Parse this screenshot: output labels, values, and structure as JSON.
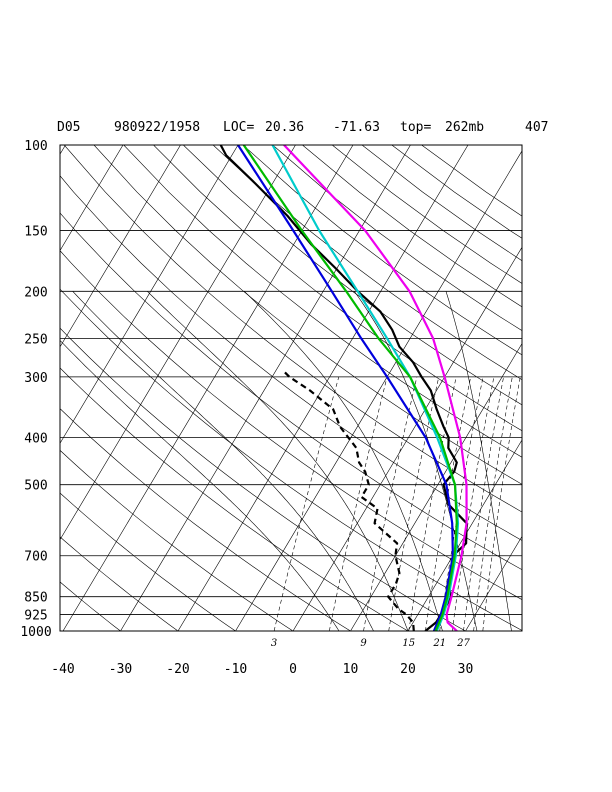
{
  "header": {
    "station": "D05",
    "datetime": "980922/1958",
    "loc_label": "LOC=",
    "lat": "20.36",
    "lon": "-71.63",
    "top_label": "top=",
    "top_value": "262mb",
    "number": "407"
  },
  "chart_data": {
    "type": "line",
    "subtype": "skew-T log-P sounding",
    "p_ticks": [
      "100",
      "150",
      "200",
      "250",
      "300",
      "400",
      "500",
      "700",
      "850",
      "925",
      "1000"
    ],
    "t_ticks": [
      "-40",
      "-30",
      "-20",
      "-10",
      "0",
      "10",
      "20",
      "30"
    ],
    "mixing_ratio_labels": [
      "3",
      "9",
      "15",
      "21",
      "27"
    ],
    "grid": true,
    "series": [
      {
        "color": "#000000",
        "style": "solid",
        "points": [
          [
            1000,
            23
          ],
          [
            960,
            24
          ],
          [
            925,
            24
          ],
          [
            900,
            24
          ],
          [
            850,
            24
          ],
          [
            800,
            22
          ],
          [
            760,
            21.5
          ],
          [
            700,
            20
          ],
          [
            660,
            21
          ],
          [
            600,
            19
          ],
          [
            550,
            14
          ],
          [
            500,
            11
          ],
          [
            470,
            11.5
          ],
          [
            450,
            11
          ],
          [
            420,
            8
          ],
          [
            400,
            7
          ],
          [
            380,
            5
          ],
          [
            350,
            2
          ],
          [
            320,
            -1
          ],
          [
            300,
            -4
          ],
          [
            280,
            -7
          ],
          [
            260,
            -11
          ],
          [
            240,
            -14
          ],
          [
            220,
            -18
          ],
          [
            200,
            -24
          ],
          [
            180,
            -30
          ],
          [
            160,
            -37
          ],
          [
            140,
            -44
          ],
          [
            120,
            -53
          ],
          [
            105,
            -61
          ],
          [
            100,
            -63
          ]
        ]
      },
      {
        "color": "#000000",
        "style": "dashed",
        "points": [
          [
            1000,
            21
          ],
          [
            960,
            20
          ],
          [
            925,
            18
          ],
          [
            900,
            16
          ],
          [
            850,
            13
          ],
          [
            800,
            13
          ],
          [
            760,
            12.5
          ],
          [
            700,
            10
          ],
          [
            660,
            9
          ],
          [
            600,
            3
          ],
          [
            560,
            2
          ],
          [
            530,
            -2
          ],
          [
            500,
            -2
          ],
          [
            470,
            -4
          ],
          [
            450,
            -6
          ],
          [
            420,
            -8
          ],
          [
            380,
            -13
          ],
          [
            350,
            -16
          ],
          [
            320,
            -22
          ],
          [
            300,
            -27
          ],
          [
            290,
            -29
          ]
        ]
      },
      {
        "color": "#0000dd",
        "style": "solid",
        "points": [
          [
            1000,
            24.5
          ],
          [
            925,
            24
          ],
          [
            850,
            23
          ],
          [
            700,
            20
          ],
          [
            600,
            16.5
          ],
          [
            500,
            11.5
          ],
          [
            400,
            3
          ],
          [
            300,
            -10
          ],
          [
            250,
            -18.5
          ],
          [
            200,
            -28.5
          ],
          [
            150,
            -41.5
          ],
          [
            100,
            -60
          ]
        ]
      },
      {
        "color": "#00cccc",
        "style": "solid",
        "points": [
          [
            1000,
            25
          ],
          [
            925,
            24.5
          ],
          [
            850,
            23.5
          ],
          [
            700,
            20.5
          ],
          [
            600,
            17.5
          ],
          [
            500,
            13
          ],
          [
            400,
            5
          ],
          [
            300,
            -6
          ],
          [
            250,
            -14
          ],
          [
            200,
            -24
          ],
          [
            150,
            -37
          ],
          [
            100,
            -54
          ]
        ]
      },
      {
        "color": "#00bb00",
        "style": "solid",
        "points": [
          [
            1000,
            24.8
          ],
          [
            925,
            24.3
          ],
          [
            850,
            23.3
          ],
          [
            700,
            20.3
          ],
          [
            600,
            17.3
          ],
          [
            500,
            13
          ],
          [
            400,
            5.5
          ],
          [
            300,
            -6
          ],
          [
            250,
            -15.5
          ],
          [
            200,
            -26
          ],
          [
            150,
            -40
          ],
          [
            100,
            -59
          ]
        ]
      },
      {
        "color": "#ee00ee",
        "style": "solid",
        "points": [
          [
            1000,
            28.5
          ],
          [
            960,
            26
          ],
          [
            925,
            25
          ],
          [
            850,
            24
          ],
          [
            700,
            21.5
          ],
          [
            600,
            19
          ],
          [
            500,
            15
          ],
          [
            400,
            9
          ],
          [
            300,
            0
          ],
          [
            250,
            -6
          ],
          [
            200,
            -15
          ],
          [
            150,
            -29
          ],
          [
            100,
            -52
          ]
        ]
      }
    ]
  }
}
